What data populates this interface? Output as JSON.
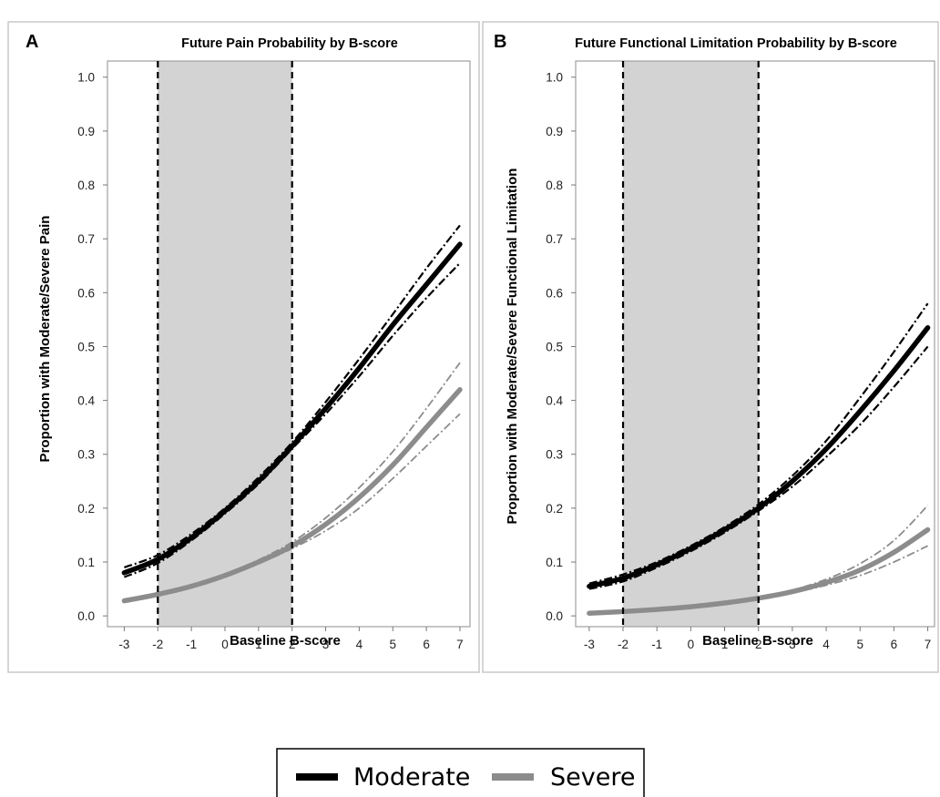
{
  "legend": {
    "items": [
      {
        "label": "Moderate",
        "color": "#000000"
      },
      {
        "label": "Severe",
        "color": "#8c8c8c"
      }
    ]
  },
  "colors": {
    "moderate": "#000000",
    "severe": "#8c8c8c",
    "shade": "#d3d3d3",
    "frame": "#a0a0a0"
  },
  "chart_data": [
    {
      "type": "line",
      "panel": "A",
      "title": "Future Pain Probability by B-score",
      "xlabel": "Baseline B-score",
      "ylabel": "Proportion with Moderate/Severe Pain",
      "xlim": [
        -3.5,
        7.3
      ],
      "ylim": [
        -0.02,
        1.03
      ],
      "xticks": [
        -3,
        -2,
        -1,
        0,
        1,
        2,
        3,
        4,
        5,
        6,
        7
      ],
      "yticks": [
        "0.0",
        "0.1",
        "0.2",
        "0.3",
        "0.4",
        "0.5",
        "0.6",
        "0.7",
        "0.8",
        "0.9",
        "1.0"
      ],
      "shaded_region": [
        -2,
        2
      ],
      "reference_lines_x": [
        -2,
        2
      ],
      "x": [
        -3,
        -2,
        -1,
        0,
        1,
        2,
        3,
        4,
        5,
        6,
        7
      ],
      "series": [
        {
          "name": "Moderate",
          "style": "fitted",
          "values": [
            0.08,
            0.105,
            0.145,
            0.195,
            0.25,
            0.315,
            0.385,
            0.46,
            0.54,
            0.615,
            0.69
          ],
          "ci_lower": [
            0.072,
            0.098,
            0.14,
            0.19,
            0.245,
            0.31,
            0.375,
            0.445,
            0.52,
            0.59,
            0.655
          ],
          "ci_upper": [
            0.09,
            0.113,
            0.152,
            0.2,
            0.257,
            0.322,
            0.397,
            0.477,
            0.56,
            0.645,
            0.725
          ]
        },
        {
          "name": "Severe",
          "style": "fitted",
          "values": [
            0.028,
            0.04,
            0.055,
            0.075,
            0.1,
            0.13,
            0.17,
            0.22,
            0.28,
            0.35,
            0.42
          ],
          "ci_lower": [
            0.025,
            0.037,
            0.052,
            0.072,
            0.097,
            0.125,
            0.158,
            0.2,
            0.255,
            0.315,
            0.375
          ],
          "ci_upper": [
            0.031,
            0.043,
            0.058,
            0.078,
            0.104,
            0.137,
            0.182,
            0.238,
            0.305,
            0.385,
            0.47
          ]
        }
      ]
    },
    {
      "type": "line",
      "panel": "B",
      "title": "Future Functional Limitation Probability by B-score",
      "xlabel": "Baseline B-score",
      "ylabel": "Proportion with Moderate/Severe Functional Limitation",
      "xlim": [
        -3.4,
        7.2
      ],
      "ylim": [
        -0.02,
        1.03
      ],
      "xticks": [
        -3,
        -2,
        -1,
        0,
        1,
        2,
        3,
        4,
        5,
        6,
        7
      ],
      "yticks": [
        "0.0",
        "0.1",
        "0.2",
        "0.3",
        "0.4",
        "0.5",
        "0.6",
        "0.7",
        "0.8",
        "0.9",
        "1.0"
      ],
      "shaded_region": [
        -2,
        2
      ],
      "reference_lines_x": [
        -2,
        2
      ],
      "x": [
        -3,
        -2,
        -1,
        0,
        1,
        2,
        3,
        4,
        5,
        6,
        7
      ],
      "series": [
        {
          "name": "Moderate",
          "style": "fitted",
          "values": [
            0.055,
            0.07,
            0.095,
            0.125,
            0.16,
            0.2,
            0.25,
            0.31,
            0.38,
            0.455,
            0.535
          ],
          "ci_lower": [
            0.05,
            0.064,
            0.09,
            0.12,
            0.155,
            0.195,
            0.24,
            0.295,
            0.355,
            0.425,
            0.5
          ],
          "ci_upper": [
            0.06,
            0.077,
            0.1,
            0.13,
            0.165,
            0.207,
            0.26,
            0.325,
            0.405,
            0.49,
            0.58
          ]
        },
        {
          "name": "Severe",
          "style": "fitted",
          "values": [
            0.005,
            0.008,
            0.012,
            0.017,
            0.024,
            0.033,
            0.045,
            0.062,
            0.085,
            0.118,
            0.16
          ],
          "ci_lower": [
            0.004,
            0.007,
            0.011,
            0.016,
            0.023,
            0.032,
            0.043,
            0.057,
            0.075,
            0.1,
            0.13
          ],
          "ci_upper": [
            0.006,
            0.009,
            0.013,
            0.018,
            0.025,
            0.035,
            0.048,
            0.068,
            0.097,
            0.14,
            0.205
          ]
        }
      ]
    }
  ]
}
